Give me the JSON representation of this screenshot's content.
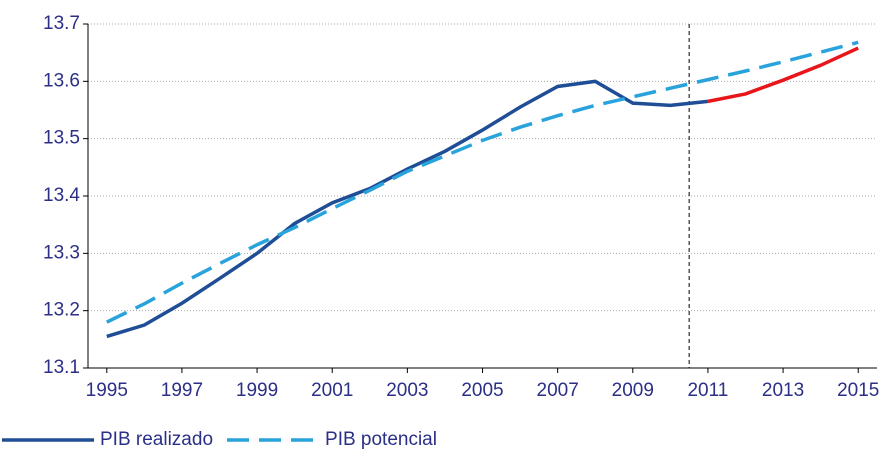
{
  "chart_data": {
    "type": "line",
    "x": [
      1995,
      1996,
      1997,
      1998,
      1999,
      2000,
      2001,
      2002,
      2003,
      2004,
      2005,
      2006,
      2007,
      2008,
      2009,
      2010,
      2011,
      2012,
      2013,
      2014,
      2015
    ],
    "series": [
      {
        "name": "PIB realizado",
        "color": "#1f4e96",
        "dash": false,
        "values": [
          13.155,
          13.175,
          13.213,
          13.256,
          13.3,
          13.352,
          13.388,
          13.413,
          13.447,
          13.478,
          13.515,
          13.555,
          13.591,
          13.6,
          13.562,
          13.558,
          13.565,
          null,
          null,
          null,
          null
        ]
      },
      {
        "name": "PIB potencial",
        "color": "#29a3dc",
        "dash": true,
        "values": [
          13.18,
          13.212,
          13.248,
          13.282,
          13.315,
          13.345,
          13.378,
          13.41,
          13.443,
          13.47,
          13.497,
          13.52,
          13.54,
          13.558,
          13.573,
          13.588,
          13.603,
          13.618,
          13.634,
          13.651,
          13.668
        ]
      },
      {
        "color": "#e8161b",
        "dash": false,
        "values": [
          null,
          null,
          null,
          null,
          null,
          null,
          null,
          null,
          null,
          null,
          null,
          null,
          null,
          null,
          null,
          null,
          13.565,
          13.578,
          13.602,
          13.628,
          13.658
        ]
      }
    ],
    "xlim": [
      1994.5,
      2015.5
    ],
    "xticks": [
      1995,
      1997,
      1999,
      2001,
      2003,
      2005,
      2007,
      2009,
      2011,
      2013,
      2015
    ],
    "ylim": [
      13.1,
      13.7
    ],
    "yticks": [
      13.1,
      13.2,
      13.3,
      13.4,
      13.5,
      13.6,
      13.7
    ],
    "grid": true,
    "vline_x": 2010.5,
    "legend": "bottom-left"
  }
}
